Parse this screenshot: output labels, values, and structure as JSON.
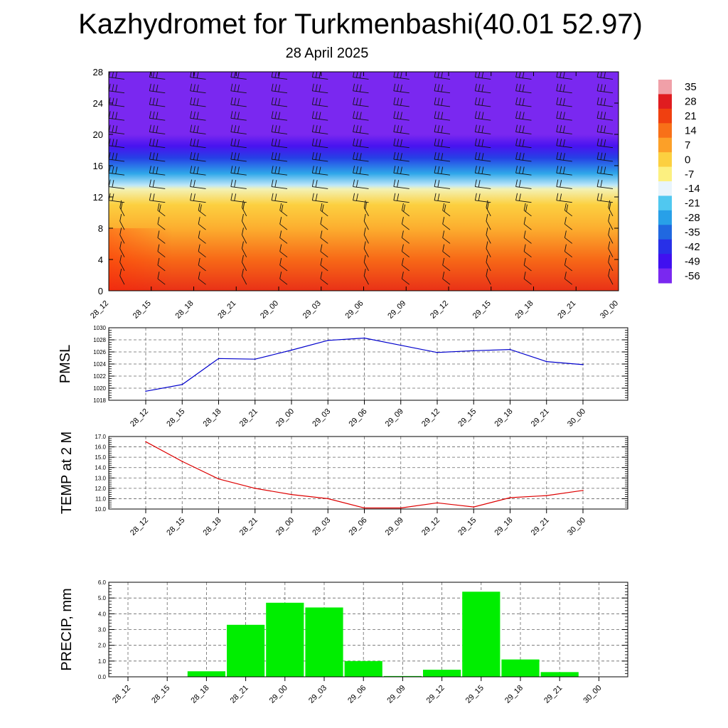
{
  "header": {
    "title": "Kazhydromet for Turkmenbashi(40.01 52.97)",
    "subtitle": "28 April 2025"
  },
  "time_labels": [
    "28_12",
    "28_15",
    "28_18",
    "28_21",
    "29_00",
    "29_03",
    "29_06",
    "29_09",
    "29_12",
    "29_15",
    "29_18",
    "29_21",
    "30_00"
  ],
  "chart_data": [
    {
      "type": "heatmap",
      "name": "temperature-wind-profile",
      "x": [
        "28_12",
        "28_15",
        "28_18",
        "28_21",
        "29_00",
        "29_03",
        "29_06",
        "29_09",
        "29_12",
        "29_15",
        "29_18",
        "29_21",
        "30_00"
      ],
      "ylim": [
        0,
        28
      ],
      "y_ticks": [
        "0",
        "4",
        "8",
        "12",
        "16",
        "20",
        "24",
        "28"
      ],
      "color_levels": [
        {
          "value": 35,
          "color": "#f0a0a8"
        },
        {
          "value": 28,
          "color": "#e01c20"
        },
        {
          "value": 21,
          "color": "#f04010"
        },
        {
          "value": 14,
          "color": "#f87018"
        },
        {
          "value": 7,
          "color": "#fca028"
        },
        {
          "value": 0,
          "color": "#fcd040"
        },
        {
          "value": -7,
          "color": "#fcf080"
        },
        {
          "value": -14,
          "color": "#e8f4fc"
        },
        {
          "value": -21,
          "color": "#50c8f0"
        },
        {
          "value": -28,
          "color": "#28a0e8"
        },
        {
          "value": -35,
          "color": "#2068e0"
        },
        {
          "value": -42,
          "color": "#2830e8"
        },
        {
          "value": -49,
          "color": "#4010f0"
        },
        {
          "value": -56,
          "color": "#7a28f0"
        }
      ],
      "colorbar_labels": [
        "35",
        "28",
        "21",
        "14",
        "7",
        "0",
        "-7",
        "-14",
        "-21",
        "-28",
        "-35",
        "-42",
        "-49",
        "-56"
      ],
      "profile": [
        {
          "y": 0,
          "value": 24
        },
        {
          "y": 4,
          "value": 15
        },
        {
          "y": 8,
          "value": 5
        },
        {
          "y": 11,
          "value": 0
        },
        {
          "y": 13,
          "value": -10
        },
        {
          "y": 13.5,
          "value": -16
        },
        {
          "y": 15,
          "value": -27
        },
        {
          "y": 17,
          "value": -40
        },
        {
          "y": 18.5,
          "value": -50
        },
        {
          "y": 20,
          "value": -58
        },
        {
          "y": 24,
          "value": -60
        },
        {
          "y": 28,
          "value": -58
        }
      ],
      "wind_barbs": "present"
    },
    {
      "type": "line",
      "name": "pmsl",
      "ylabel": "PMSL",
      "x": [
        "28_12",
        "28_15",
        "28_18",
        "28_21",
        "29_00",
        "29_03",
        "29_06",
        "29_09",
        "29_12",
        "29_15",
        "29_18",
        "29_21",
        "30_00"
      ],
      "series": [
        {
          "values": [
            1019.5,
            1020.6,
            1024.9,
            1024.8,
            1026.3,
            1027.9,
            1028.3,
            1027.1,
            1025.9,
            1026.2,
            1026.4,
            1024.4,
            1023.9
          ],
          "color": "#0000cc"
        }
      ],
      "ylim": [
        1018,
        1030
      ],
      "y_ticks": [
        "1018",
        "1020",
        "1022",
        "1024",
        "1026",
        "1028",
        "1030"
      ],
      "grid": true
    },
    {
      "type": "line",
      "name": "temp-2m",
      "ylabel": "TEMP at 2 M",
      "x": [
        "28_12",
        "28_15",
        "28_18",
        "28_21",
        "29_00",
        "29_03",
        "29_06",
        "29_09",
        "29_12",
        "29_15",
        "29_18",
        "29_21",
        "30_00"
      ],
      "series": [
        {
          "values": [
            16.5,
            14.6,
            12.9,
            12.0,
            11.4,
            11.0,
            10.1,
            10.1,
            10.6,
            10.2,
            11.1,
            11.3,
            11.8
          ],
          "color": "#dd0000"
        }
      ],
      "ylim": [
        10.0,
        17.0
      ],
      "y_ticks": [
        "10.0",
        "11.0",
        "12.0",
        "13.0",
        "14.0",
        "15.0",
        "16.0",
        "17.0"
      ],
      "grid": true
    },
    {
      "type": "bar",
      "name": "precip",
      "ylabel": "PRECIP, mm",
      "x": [
        "28_12",
        "28_15",
        "28_18",
        "28_21",
        "29_00",
        "29_03",
        "29_06",
        "29_09",
        "29_12",
        "29_15",
        "29_18",
        "29_21",
        "30_00"
      ],
      "values": [
        0,
        0,
        0.35,
        3.3,
        4.7,
        4.4,
        1.0,
        0.05,
        0.45,
        5.4,
        1.1,
        0.3,
        0
      ],
      "ylim": [
        0,
        6.0
      ],
      "y_ticks": [
        "0.0",
        "1.0",
        "2.0",
        "3.0",
        "4.0",
        "5.0",
        "6.0"
      ],
      "bar_color": "#00ee00",
      "grid": true
    }
  ]
}
